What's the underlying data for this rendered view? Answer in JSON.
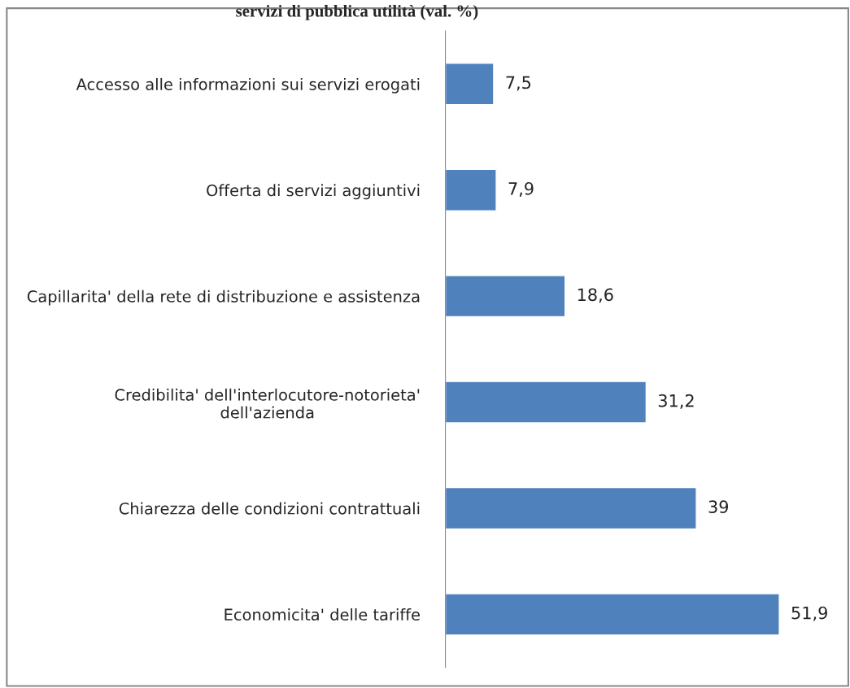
{
  "chart_data": {
    "type": "bar",
    "orientation": "horizontal",
    "title": "servizi di pubblica utilità (val. %)",
    "categories": [
      "Accesso alle informazioni sui servizi erogati",
      "Offerta di servizi aggiuntivi",
      "Capillarita' della rete di distribuzione e assistenza",
      "Credibilita' dell'interlocutore-notorieta'\ndell'azienda",
      "Chiarezza delle condizioni contrattuali",
      "Economicita' delle tariffe"
    ],
    "values": [
      7.5,
      7.9,
      18.6,
      31.2,
      39,
      51.9
    ],
    "value_labels": [
      "7,5",
      "7,9",
      "18,6",
      "31,2",
      "39",
      "51,9"
    ],
    "color": "#4f81bd",
    "grid": false,
    "legend": false
  }
}
